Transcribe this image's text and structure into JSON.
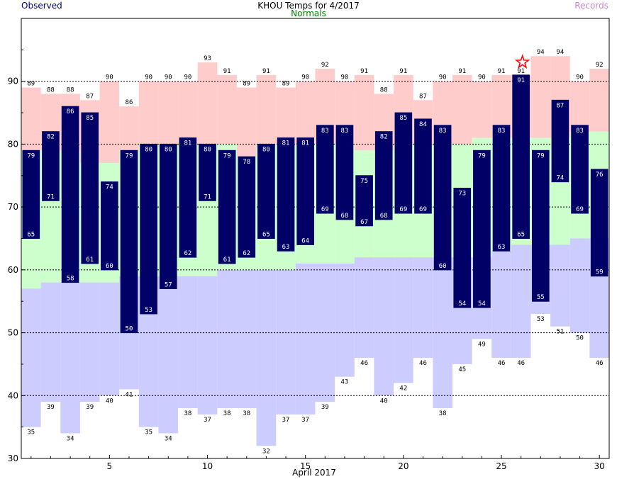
{
  "header": {
    "title": "KHOU Temps for 4/2017",
    "observed_label": "Observed",
    "normals_label": "Normals",
    "records_label": "Records",
    "observed_color": "#000080",
    "normals_color": "#008000",
    "records_color": "#cc88cc"
  },
  "chart_data": {
    "type": "bar",
    "title": "KHOU Temps for 4/2017",
    "xlabel": "April 2017",
    "ylabel": "",
    "xlim": [
      0.5,
      30.5
    ],
    "ylim": [
      30,
      100
    ],
    "xticks": [
      5,
      10,
      15,
      20,
      25,
      30
    ],
    "yticks": [
      30,
      40,
      50,
      60,
      70,
      80,
      90
    ],
    "dashed_gridlines": [
      40,
      50,
      60,
      70,
      80,
      90
    ],
    "days": [
      1,
      2,
      3,
      4,
      5,
      6,
      7,
      8,
      9,
      10,
      11,
      12,
      13,
      14,
      15,
      16,
      17,
      18,
      19,
      20,
      21,
      22,
      23,
      24,
      25,
      26,
      27,
      28,
      29,
      30
    ],
    "record_high": [
      89,
      88,
      88,
      87,
      90,
      86,
      90,
      90,
      90,
      93,
      91,
      89,
      91,
      89,
      90,
      92,
      90,
      91,
      88,
      91,
      87,
      90,
      91,
      90,
      91,
      91,
      94,
      94,
      90,
      92
    ],
    "record_low": [
      35,
      39,
      34,
      39,
      40,
      41,
      35,
      34,
      38,
      37,
      38,
      38,
      32,
      37,
      37,
      39,
      43,
      46,
      40,
      42,
      46,
      38,
      45,
      49,
      46,
      46,
      53,
      51,
      50,
      46
    ],
    "observed_high": [
      79,
      82,
      86,
      85,
      74,
      79,
      80,
      80,
      81,
      80,
      79,
      78,
      80,
      81,
      81,
      83,
      83,
      75,
      82,
      85,
      84,
      83,
      73,
      79,
      83,
      91,
      79,
      87,
      83,
      76
    ],
    "observed_low": [
      65,
      71,
      58,
      61,
      60,
      50,
      53,
      57,
      62,
      71,
      61,
      62,
      65,
      63,
      64,
      69,
      68,
      67,
      68,
      69,
      69,
      60,
      54,
      54,
      63,
      65,
      55,
      74,
      69,
      59
    ],
    "normal_high": [
      79,
      79,
      79,
      77,
      77,
      79,
      80,
      80,
      80,
      80,
      80,
      78,
      80,
      80,
      80,
      80,
      80,
      79,
      79,
      80,
      80,
      80,
      80,
      81,
      81,
      81,
      81,
      81,
      82,
      82
    ],
    "normal_low": [
      57,
      58,
      58,
      58,
      58,
      59,
      59,
      59,
      59,
      59,
      60,
      60,
      60,
      60,
      61,
      61,
      61,
      62,
      62,
      62,
      62,
      62,
      62,
      62,
      63,
      64,
      64,
      64,
      65,
      65
    ],
    "record_star_day": 26,
    "series": [
      {
        "name": "Observed",
        "color": "#000066"
      },
      {
        "name": "Normals",
        "color": "#ccffcc"
      },
      {
        "name": "Records",
        "color": "#ffcccc"
      }
    ],
    "colors": {
      "record_high_fill": "#ffcccc",
      "normal_fill": "#ccffcc",
      "record_low_fill": "#ccccff",
      "observed_bar": "#000066",
      "observed_label_text": "#ffffff",
      "star": "#ff0000"
    },
    "grid": true,
    "legend": "top"
  }
}
